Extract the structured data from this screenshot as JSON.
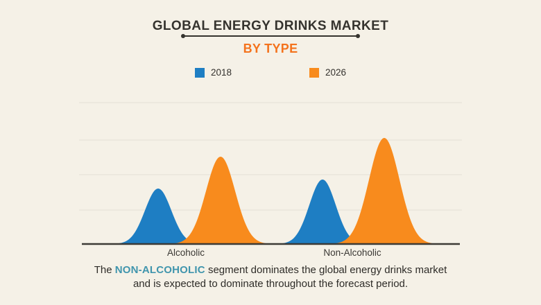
{
  "page": {
    "background_color": "#f5f1e7"
  },
  "header": {
    "title": "GLOBAL ENERGY DRINKS MARKET",
    "subtitle": "BY TYPE",
    "subtitle_color": "#f4731d"
  },
  "legend": {
    "items": [
      {
        "label": "2018",
        "color": "#1e7ec3"
      },
      {
        "label": "2026",
        "color": "#f88b1d"
      }
    ]
  },
  "chart_data": {
    "type": "area",
    "subtype": "bell-curve-infographic",
    "title": "Global Energy Drinks Market by Type",
    "categories": [
      "Alcoholic",
      "Non-Alcoholic"
    ],
    "series": [
      {
        "name": "2018",
        "color": "#1e7ec3",
        "values": [
          80,
          93
        ]
      },
      {
        "name": "2026",
        "color": "#f88b1d",
        "values": [
          126,
          153
        ]
      }
    ],
    "value_note": "no numeric axis shown; values are relative peak heights in px above baseline",
    "ylim": [
      0,
      212
    ],
    "grid": true,
    "legend_position": "top",
    "gridline_color": "#e3dfd4",
    "axis_color": "#3c3a36",
    "peaks": [
      {
        "series": "2018",
        "category": "Alcoholic",
        "center_x": 228,
        "height": 80,
        "sigma": 19,
        "color": "#1e7ec3"
      },
      {
        "series": "2026",
        "category": "Alcoholic",
        "center_x": 318,
        "height": 126,
        "sigma": 21,
        "color": "#f88b1d"
      },
      {
        "series": "2018",
        "category": "Non-Alcoholic",
        "center_x": 465,
        "height": 93,
        "sigma": 19,
        "color": "#1e7ec3"
      },
      {
        "series": "2026",
        "category": "Non-Alcoholic",
        "center_x": 554,
        "height": 153,
        "sigma": 22,
        "color": "#f88b1d"
      }
    ],
    "axis": {
      "x_start": 118,
      "x_end": 663,
      "baseline_y": 212,
      "gridline_ys": [
        8,
        62,
        112,
        163
      ]
    },
    "category_label_positions": [
      {
        "label": "Alcoholic",
        "center_x": 268
      },
      {
        "label": "Non-Alcoholic",
        "center_x": 508
      }
    ]
  },
  "caption": {
    "line1_prefix": "The ",
    "line1_highlight": "NON-ALCOHOLIC",
    "line1_suffix": " segment dominates the global energy drinks market",
    "line2": "and is expected to dominate throughout the forecast period.",
    "highlight_color": "#4095ad"
  }
}
